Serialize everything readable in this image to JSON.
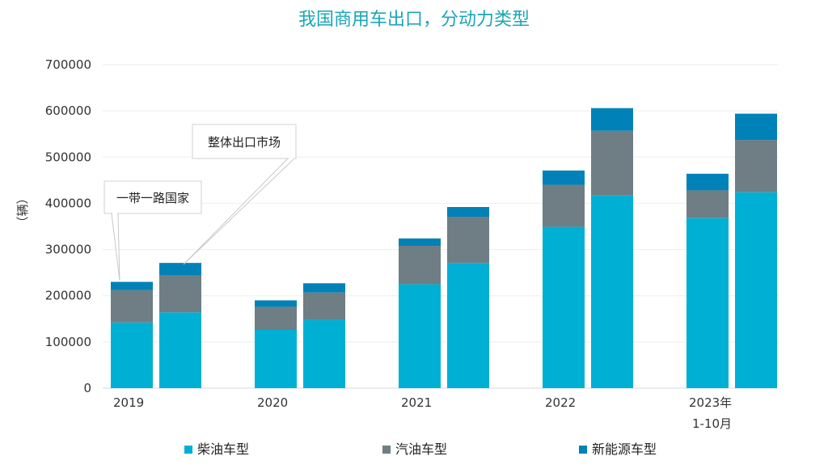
{
  "chart_data": {
    "type": "bar",
    "stacked": true,
    "title": "我国商用车出口，分动力类型",
    "ylabel": "（辆）",
    "xlabel": "",
    "ylim": [
      0,
      700000
    ],
    "yticks": [
      0,
      100000,
      200000,
      300000,
      400000,
      500000,
      600000,
      700000
    ],
    "ytick_labels": [
      "0",
      "100000",
      "200000",
      "300000",
      "400000",
      "500000",
      "600000",
      "700000"
    ],
    "grid": true,
    "legend_position": "bottom",
    "groups": [
      {
        "label_lines": [
          "2019"
        ]
      },
      {
        "label_lines": [
          "2020"
        ]
      },
      {
        "label_lines": [
          "2021"
        ]
      },
      {
        "label_lines": [
          "2022"
        ]
      },
      {
        "label_lines": [
          "2023年",
          "1-10月"
        ]
      }
    ],
    "bar_roles": [
      "一带一路国家",
      "整体出口市场"
    ],
    "series": [
      {
        "name": "柴油车型",
        "color": "#00B0D4",
        "values": [
          142000,
          164000,
          126000,
          148000,
          225000,
          271000,
          349000,
          417000,
          368000,
          424000
        ]
      },
      {
        "name": "汽油车型",
        "color": "#6E7E84",
        "values": [
          70000,
          80000,
          50000,
          59000,
          83000,
          100000,
          91000,
          140000,
          60000,
          113000
        ]
      },
      {
        "name": "新能源车型",
        "color": "#0082B8",
        "values": [
          18000,
          27000,
          14000,
          20000,
          16000,
          21000,
          31000,
          49000,
          36000,
          57000
        ]
      }
    ],
    "annotations": [
      {
        "text": "一带一路国家",
        "target_bar": 0
      },
      {
        "text": "整体出口市场",
        "target_bar": 1
      }
    ]
  },
  "colors": {
    "title": "#1AA6B7",
    "axis_text": "#333333",
    "grid": "#EEEEEE"
  }
}
